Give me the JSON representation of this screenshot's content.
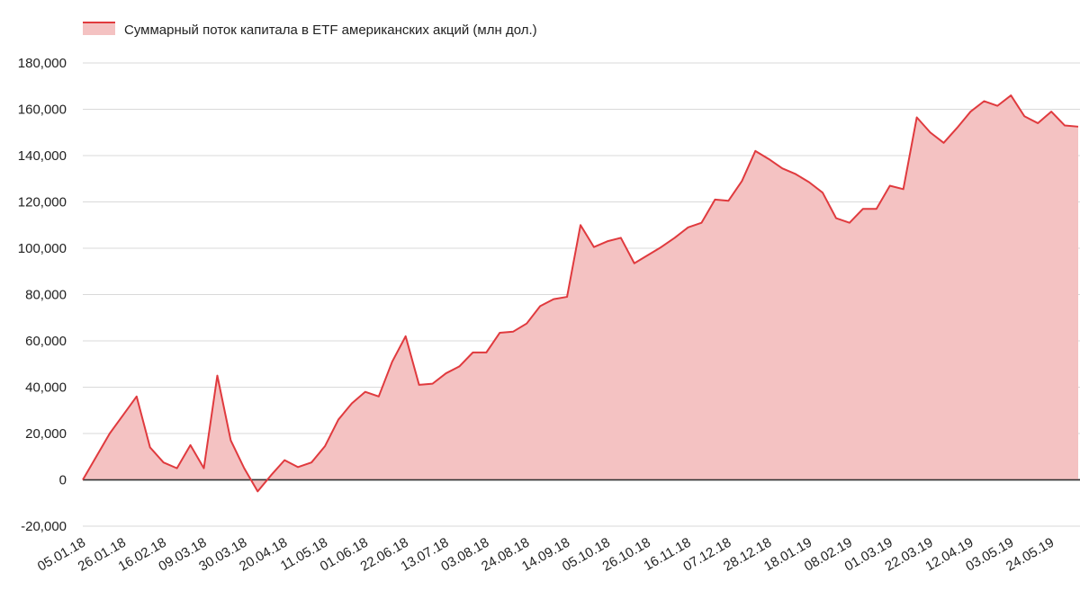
{
  "chart_data": {
    "type": "area",
    "legend": {
      "label": "Суммарный поток капитала в ETF американских акций (млн дол.)",
      "position": "top-left"
    },
    "colors": {
      "line": "#e03a3e",
      "fill": "#f4c2c2"
    },
    "grid": true,
    "ylim": [
      -20000,
      180000
    ],
    "y_ticks": [
      -20000,
      0,
      20000,
      40000,
      60000,
      80000,
      100000,
      120000,
      140000,
      160000,
      180000
    ],
    "y_tick_labels": [
      "-20,000",
      "0",
      "20,000",
      "40,000",
      "60,000",
      "80,000",
      "100,000",
      "120,000",
      "140,000",
      "160,000",
      "180,000"
    ],
    "x_tick_labels": [
      "05.01.18",
      "26.01.18",
      "16.02.18",
      "09.03.18",
      "30.03.18",
      "20.04.18",
      "11.05.18",
      "01.06.18",
      "22.06.18",
      "13.07.18",
      "03.08.18",
      "24.08.18",
      "14.09.18",
      "05.10.18",
      "26.10.18",
      "16.11.18",
      "07.12.18",
      "28.12.18",
      "18.01.19",
      "08.02.19",
      "01.03.19",
      "22.03.19",
      "12.04.19",
      "03.05.19",
      "24.05.19"
    ],
    "series": [
      {
        "name": "Суммарный поток капитала в ETF американских акций (млн дол.)",
        "values": [
          0,
          10000,
          20000,
          28000,
          36000,
          14000,
          7500,
          5000,
          15000,
          5000,
          45000,
          17000,
          5000,
          -5000,
          2000,
          8500,
          5500,
          7500,
          14500,
          26000,
          33000,
          38000,
          36000,
          51000,
          62000,
          41000,
          41500,
          46000,
          49000,
          55000,
          55000,
          63500,
          64000,
          67500,
          75000,
          78000,
          79000,
          110000,
          100500,
          103000,
          104500,
          93500,
          97000,
          100500,
          104500,
          109000,
          111000,
          121000,
          120500,
          129000,
          142000,
          138500,
          134500,
          132000,
          128500,
          124000,
          113000,
          111000,
          117000,
          117000,
          127000,
          125500,
          156500,
          150000,
          145500,
          152000,
          159000,
          163500,
          161500,
          166000,
          157000,
          154000,
          159000,
          153000,
          152500
        ]
      }
    ]
  }
}
